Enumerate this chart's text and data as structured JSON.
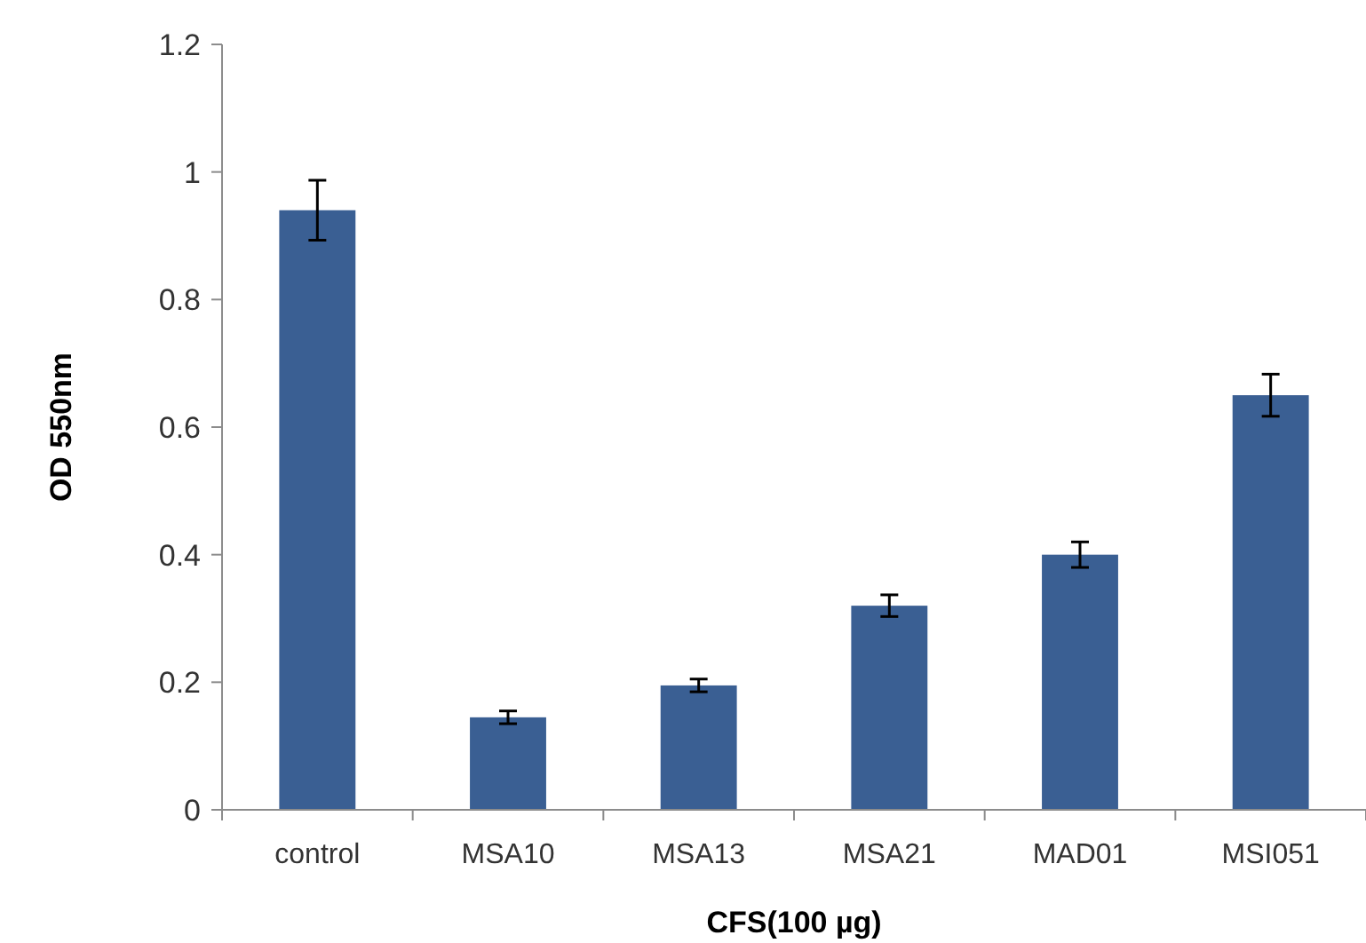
{
  "chart_data": {
    "type": "bar",
    "xlabel": "CFS(100 µg)",
    "ylabel": "OD 550nm",
    "categories": [
      "control",
      "MSA10",
      "MSA13",
      "MSA21",
      "MAD01",
      "MSI051"
    ],
    "values": [
      0.94,
      0.145,
      0.195,
      0.32,
      0.4,
      0.65
    ],
    "errors": [
      0.047,
      0.01,
      0.01,
      0.017,
      0.02,
      0.033
    ],
    "color": "#3a5f93",
    "ylim": [
      0,
      1.2
    ],
    "yticks": [
      0,
      0.2,
      0.4,
      0.6,
      0.8,
      1,
      1.2
    ],
    "grid": false
  }
}
